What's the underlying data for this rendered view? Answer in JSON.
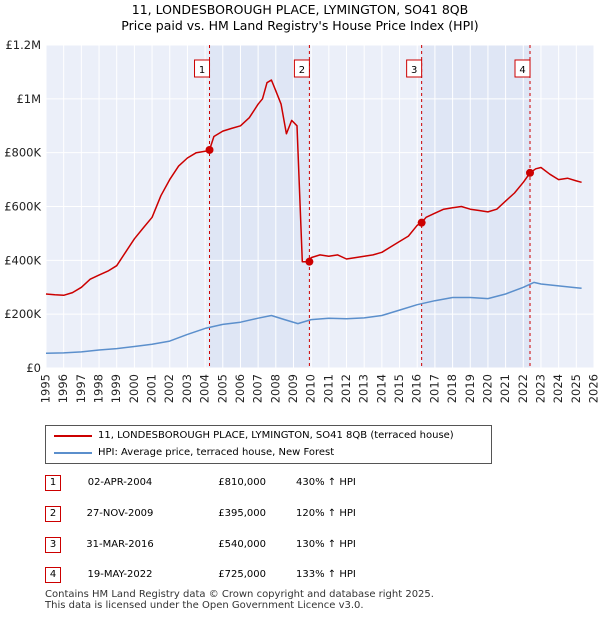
{
  "header": {
    "title": "11, LONDESBOROUGH PLACE, LYMINGTON, SO41 8QB",
    "subtitle": "Price paid vs. HM Land Registry's House Price Index (HPI)"
  },
  "chart_data": {
    "type": "line",
    "title": "11, LONDESBOROUGH PLACE, LYMINGTON, SO41 8QB",
    "subtitle": "Price paid vs. HM Land Registry's House Price Index (HPI)",
    "xlim": [
      1995,
      2026
    ],
    "ylim": [
      0,
      1200000
    ],
    "y_ticks": [
      0,
      200000,
      400000,
      600000,
      800000,
      1000000,
      1200000
    ],
    "y_tick_labels": [
      "£0",
      "£200K",
      "£400K",
      "£600K",
      "£800K",
      "£1M",
      "£1.2M"
    ],
    "x_ticks": [
      1995,
      1996,
      1997,
      1998,
      1999,
      2000,
      2001,
      2002,
      2003,
      2004,
      2005,
      2006,
      2007,
      2008,
      2009,
      2010,
      2011,
      2012,
      2013,
      2014,
      2015,
      2016,
      2017,
      2018,
      2019,
      2020,
      2021,
      2022,
      2023,
      2024,
      2025,
      2026
    ],
    "x_tick_labels": [
      "1995",
      "1996",
      "1997",
      "1998",
      "1999",
      "2000",
      "2001",
      "2002",
      "2003",
      "2004",
      "2005",
      "2006",
      "2007",
      "2008",
      "2009",
      "2010",
      "2011",
      "2012",
      "2013",
      "2014",
      "2015",
      "2016",
      "2017",
      "2018",
      "2019",
      "2020",
      "2021",
      "2022",
      "2023",
      "2024",
      "2025",
      "2026"
    ],
    "grid": true,
    "colors": {
      "property": "#cc0000",
      "hpi": "#5b8fcc",
      "shade": "#dfe6f5",
      "plot_bg": "#ebeff9",
      "grid": "#ffffff"
    },
    "series": [
      {
        "name": "11, LONDESBOROUGH PLACE, LYMINGTON, SO41 8QB (terraced house)",
        "x": [
          1995.0,
          1995.5,
          1996.0,
          1996.5,
          1997.0,
          1997.5,
          1998.0,
          1998.5,
          1999.0,
          1999.5,
          2000.0,
          2000.5,
          2001.0,
          2001.5,
          2002.0,
          2002.5,
          2003.0,
          2003.5,
          2004.0,
          2004.25,
          2004.5,
          2005.0,
          2005.5,
          2006.0,
          2006.5,
          2007.0,
          2007.25,
          2007.5,
          2007.75,
          2008.0,
          2008.3,
          2008.6,
          2008.9,
          2009.2,
          2009.5,
          2009.75,
          2009.9,
          2010.0,
          2010.5,
          2011.0,
          2011.5,
          2012.0,
          2012.5,
          2013.0,
          2013.5,
          2014.0,
          2014.5,
          2015.0,
          2015.5,
          2016.0,
          2016.25,
          2016.5,
          2017.0,
          2017.5,
          2018.0,
          2018.5,
          2019.0,
          2019.5,
          2020.0,
          2020.5,
          2021.0,
          2021.5,
          2022.0,
          2022.38,
          2022.7,
          2023.0,
          2023.5,
          2024.0,
          2024.5,
          2025.0,
          2025.3
        ],
        "values": [
          275000,
          272000,
          270000,
          280000,
          300000,
          330000,
          345000,
          360000,
          380000,
          430000,
          480000,
          520000,
          560000,
          640000,
          700000,
          750000,
          780000,
          800000,
          805000,
          810000,
          860000,
          880000,
          890000,
          900000,
          930000,
          980000,
          1000000,
          1060000,
          1070000,
          1030000,
          980000,
          870000,
          920000,
          900000,
          395000,
          395000,
          395000,
          410000,
          420000,
          415000,
          420000,
          405000,
          410000,
          415000,
          420000,
          430000,
          450000,
          470000,
          490000,
          530000,
          540000,
          560000,
          575000,
          590000,
          595000,
          600000,
          590000,
          585000,
          580000,
          590000,
          620000,
          650000,
          690000,
          725000,
          740000,
          745000,
          720000,
          700000,
          705000,
          695000,
          690000
        ]
      },
      {
        "name": "HPI: Average price, terraced house, New Forest",
        "x": [
          1995.0,
          1996.0,
          1997.0,
          1998.0,
          1999.0,
          2000.0,
          2001.0,
          2002.0,
          2003.0,
          2004.0,
          2005.0,
          2006.0,
          2007.0,
          2007.75,
          2008.5,
          2009.25,
          2010.0,
          2011.0,
          2012.0,
          2013.0,
          2014.0,
          2015.0,
          2016.0,
          2017.0,
          2018.0,
          2019.0,
          2020.0,
          2021.0,
          2022.0,
          2022.6,
          2023.0,
          2024.0,
          2025.0,
          2025.3
        ],
        "values": [
          55000,
          56000,
          60000,
          67000,
          72000,
          80000,
          88000,
          100000,
          125000,
          147000,
          162000,
          170000,
          185000,
          195000,
          180000,
          165000,
          180000,
          185000,
          183000,
          186000,
          195000,
          215000,
          235000,
          250000,
          262000,
          262000,
          258000,
          275000,
          300000,
          318000,
          312000,
          305000,
          298000,
          296000
        ]
      }
    ],
    "transactions": [
      {
        "label": "1",
        "x": 2004.25,
        "value": 810000
      },
      {
        "label": "2",
        "x": 2009.9,
        "value": 395000
      },
      {
        "label": "3",
        "x": 2016.25,
        "value": 540000
      },
      {
        "label": "4",
        "x": 2022.38,
        "value": 725000
      }
    ]
  },
  "legend": {
    "property_label": "11, LONDESBOROUGH PLACE, LYMINGTON, SO41 8QB (terraced house)",
    "hpi_label": "HPI: Average price, terraced house, New Forest"
  },
  "table": {
    "rows": [
      {
        "num": "1",
        "date": "02-APR-2004",
        "price": "£810,000",
        "hpi": "430% ↑ HPI"
      },
      {
        "num": "2",
        "date": "27-NOV-2009",
        "price": "£395,000",
        "hpi": "120% ↑ HPI"
      },
      {
        "num": "3",
        "date": "31-MAR-2016",
        "price": "£540,000",
        "hpi": "130% ↑ HPI"
      },
      {
        "num": "4",
        "date": "19-MAY-2022",
        "price": "£725,000",
        "hpi": "133% ↑ HPI"
      }
    ]
  },
  "footer": {
    "line1": "Contains HM Land Registry data © Crown copyright and database right 2025.",
    "line2": "This data is licensed under the Open Government Licence v3.0."
  }
}
